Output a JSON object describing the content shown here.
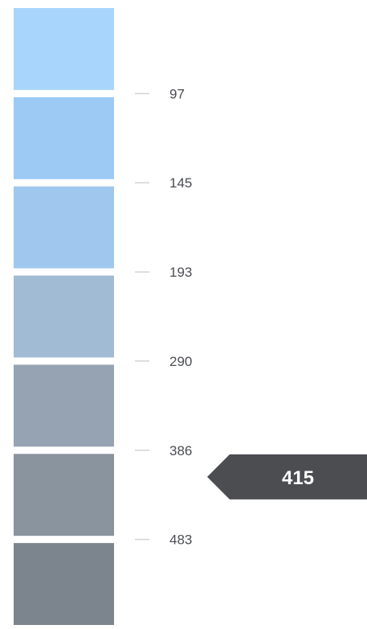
{
  "chart_data": {
    "type": "heatmap",
    "legend": {
      "orientation": "vertical",
      "thresholds": [
        97,
        145,
        193,
        290,
        386,
        483
      ],
      "tick_labels": [
        "97",
        "145",
        "193",
        "290",
        "386",
        "483"
      ],
      "bin_colors": [
        "#a8d5fb",
        "#9ccaf5",
        "#a0c8ee",
        "#a2bbd5",
        "#95a3b2",
        "#8a949e",
        "#7c858e"
      ]
    },
    "pointer": {
      "value": 415,
      "label": "415",
      "color": "#4b4d51"
    }
  }
}
